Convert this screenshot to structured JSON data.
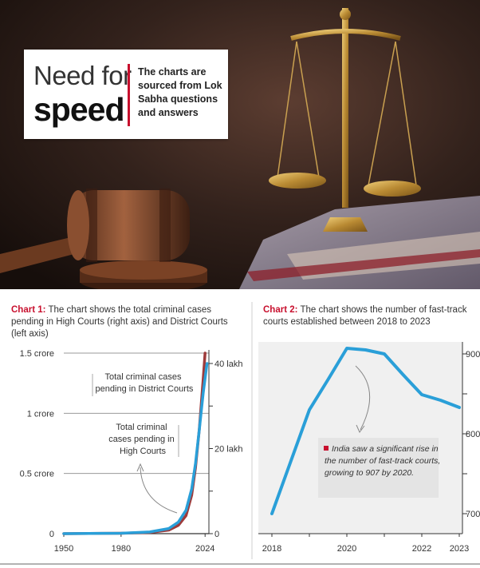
{
  "header": {
    "title_line1": "Need for",
    "title_line2": "speed",
    "note": "The charts are sourced from Lok Sabha questions and answers"
  },
  "colors": {
    "accent_red": "#c8102e",
    "line_blue": "#2a9fd8",
    "line_maroon": "#9e3b3b"
  },
  "chart_data": [
    {
      "type": "line",
      "caption_label": "Chart 1:",
      "caption_text": "The chart shows the total criminal cases pending in High Courts (right axis) and District Courts (left axis)",
      "x_ticks": [
        "1950",
        "1980",
        "2024"
      ],
      "y_left_ticks": [
        "0",
        "0.5 crore",
        "1 crore",
        "1.5 crore"
      ],
      "y_right_ticks": [
        "0",
        "20 lakh",
        "40 lakh"
      ],
      "xlim": [
        1950,
        2026
      ],
      "ylim_left": [
        0,
        1.5
      ],
      "ylim_right": [
        0,
        40
      ],
      "annotations": [
        "Total criminal cases pending in District Courts",
        "Total criminal cases pending in High Courts"
      ],
      "series": [
        {
          "name": "Total criminal cases pending in District Courts",
          "axis": "left",
          "color": "#9e3b3b",
          "x": [
            1950,
            1980,
            1995,
            2005,
            2010,
            2014,
            2017,
            2019,
            2021,
            2023,
            2024
          ],
          "y": [
            0,
            0.003,
            0.01,
            0.03,
            0.07,
            0.15,
            0.32,
            0.55,
            0.87,
            1.28,
            1.5
          ]
        },
        {
          "name": "Total criminal cases pending in High Courts",
          "axis": "right",
          "color": "#2a9fd8",
          "x": [
            1950,
            1980,
            1995,
            2005,
            2010,
            2014,
            2017,
            2019,
            2021,
            2023,
            2025
          ],
          "y": [
            0,
            0.1,
            0.4,
            1.2,
            2.7,
            5.5,
            10.5,
            16.5,
            24.5,
            33,
            40
          ]
        }
      ]
    },
    {
      "type": "line",
      "caption_label": "Chart 2:",
      "caption_text": "The chart shows the number of fast-track courts established between 2018 to 2023",
      "x_ticks": [
        "2018",
        "2020",
        "2022",
        "2023"
      ],
      "y_ticks": [
        "700",
        "800",
        "900"
      ],
      "xlim": [
        2018,
        2023
      ],
      "ylim": [
        675,
        915
      ],
      "annotation": "India saw a significant rise in the number of fast-track courts, growing to 907 by 2020.",
      "series": [
        {
          "name": "",
          "color": "#2a9fd8",
          "x": [
            2018,
            2018.5,
            2019,
            2019.5,
            2020,
            2020.5,
            2021,
            2021.5,
            2022,
            2022.5,
            2023
          ],
          "y": [
            700,
            765,
            830,
            868,
            907,
            905,
            900,
            874,
            849,
            842,
            833
          ]
        }
      ]
    }
  ]
}
